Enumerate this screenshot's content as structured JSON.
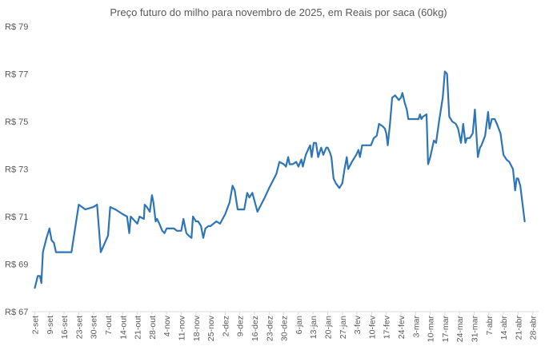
{
  "chart_data": {
    "type": "line",
    "title": "Preço futuro do milho para novembro de 2025, em Reais por saca (60kg)",
    "xlabel": "",
    "ylabel": "",
    "ylim": [
      67,
      79
    ],
    "y_ticks": [
      67,
      69,
      71,
      73,
      75,
      77,
      79
    ],
    "y_tick_labels": [
      "R$ 67",
      "R$ 69",
      "R$ 71",
      "R$ 73",
      "R$ 75",
      "R$ 77",
      "R$ 79"
    ],
    "x_tick_labels": [
      "2-set",
      "9-set",
      "16-set",
      "23-set",
      "30-set",
      "7-out",
      "14-out",
      "21-out",
      "28-out",
      "4-nov",
      "11-nov",
      "18-nov",
      "25-nov",
      "2-dez",
      "9-dez",
      "16-dez",
      "23-dez",
      "30-dez",
      "6-jan",
      "13-jan",
      "20-jan",
      "27-jan",
      "3-fev",
      "10-fev",
      "17-fev",
      "24-fev",
      "3-mar",
      "10-mar",
      "17-mar",
      "24-mar",
      "31-mar",
      "7-abr",
      "14-abr",
      "21-abr",
      "28-abr"
    ],
    "grid": false,
    "legend": "none",
    "line_color": "#2e75b6",
    "series": [
      {
        "values": [
          [
            0,
            68.0
          ],
          [
            0.4,
            68.5
          ],
          [
            0.7,
            68.5
          ],
          [
            0.9,
            68.2
          ],
          [
            1.1,
            69.5
          ],
          [
            1.6,
            70.1
          ],
          [
            2.0,
            70.5
          ],
          [
            2.3,
            70.0
          ],
          [
            2.6,
            69.9
          ],
          [
            2.9,
            69.5
          ],
          [
            4.0,
            69.5
          ],
          [
            4.3,
            69.5
          ],
          [
            5.0,
            69.5
          ],
          [
            6.0,
            71.5
          ],
          [
            6.9,
            71.3
          ],
          [
            8.0,
            71.4
          ],
          [
            8.5,
            71.5
          ],
          [
            9.0,
            69.5
          ],
          [
            10.0,
            70.2
          ],
          [
            10.3,
            71.4
          ],
          [
            11.0,
            71.3
          ],
          [
            12.0,
            71.1
          ],
          [
            12.6,
            71.0
          ],
          [
            12.9,
            70.3
          ],
          [
            13.1,
            71.0
          ],
          [
            13.4,
            70.9
          ],
          [
            14.0,
            70.7
          ],
          [
            14.3,
            71.0
          ],
          [
            14.9,
            70.9
          ],
          [
            15.0,
            71.5
          ],
          [
            15.3,
            71.4
          ],
          [
            15.7,
            71.2
          ],
          [
            16.0,
            71.9
          ],
          [
            16.2,
            71.6
          ],
          [
            16.5,
            70.8
          ],
          [
            16.7,
            70.9
          ],
          [
            17.0,
            70.7
          ],
          [
            17.4,
            70.4
          ],
          [
            17.7,
            70.3
          ],
          [
            18.0,
            70.5
          ],
          [
            19.0,
            70.5
          ],
          [
            19.4,
            70.4
          ],
          [
            20.0,
            70.4
          ],
          [
            20.3,
            70.9
          ],
          [
            20.7,
            70.3
          ],
          [
            21.0,
            70.2
          ],
          [
            21.4,
            70.1
          ],
          [
            21.6,
            71.0
          ],
          [
            22.0,
            70.8
          ],
          [
            22.3,
            70.8
          ],
          [
            22.7,
            70.6
          ],
          [
            23.0,
            70.1
          ],
          [
            23.3,
            70.5
          ],
          [
            23.7,
            70.6
          ],
          [
            24.0,
            70.6
          ],
          [
            24.4,
            70.7
          ],
          [
            24.8,
            70.8
          ],
          [
            25.3,
            70.7
          ],
          [
            26.0,
            71.1
          ],
          [
            26.6,
            71.6
          ],
          [
            27.0,
            72.3
          ],
          [
            27.3,
            72.1
          ],
          [
            27.7,
            71.3
          ],
          [
            28.6,
            71.3
          ],
          [
            29.0,
            72.0
          ],
          [
            29.3,
            71.8
          ],
          [
            29.7,
            72.0
          ],
          [
            30.4,
            71.2
          ],
          [
            31.4,
            71.8
          ],
          [
            32.0,
            72.2
          ],
          [
            32.5,
            72.5
          ],
          [
            33.0,
            72.8
          ],
          [
            33.4,
            73.3
          ],
          [
            34.0,
            73.2
          ],
          [
            34.3,
            73.1
          ],
          [
            34.6,
            73.5
          ],
          [
            34.8,
            73.2
          ],
          [
            35.2,
            73.2
          ],
          [
            35.7,
            73.3
          ],
          [
            36.0,
            73.1
          ],
          [
            36.4,
            73.4
          ],
          [
            36.6,
            73.1
          ],
          [
            37.0,
            73.6
          ],
          [
            37.3,
            73.8
          ],
          [
            37.6,
            74.0
          ],
          [
            37.8,
            73.5
          ],
          [
            38.1,
            74.1
          ],
          [
            38.4,
            74.1
          ],
          [
            38.7,
            73.5
          ],
          [
            39.1,
            73.9
          ],
          [
            39.4,
            73.6
          ],
          [
            39.8,
            73.9
          ],
          [
            40.0,
            73.9
          ],
          [
            40.3,
            73.7
          ],
          [
            40.5,
            73.5
          ],
          [
            40.8,
            72.6
          ],
          [
            41.1,
            72.4
          ],
          [
            41.6,
            72.2
          ],
          [
            42.0,
            72.4
          ],
          [
            42.3,
            73.0
          ],
          [
            42.6,
            73.5
          ],
          [
            42.8,
            73.0
          ],
          [
            43.3,
            73.3
          ],
          [
            43.9,
            73.6
          ],
          [
            44.2,
            73.8
          ],
          [
            44.4,
            73.5
          ],
          [
            44.7,
            74.0
          ],
          [
            45.5,
            74.0
          ],
          [
            45.9,
            74.0
          ],
          [
            46.3,
            74.3
          ],
          [
            46.7,
            74.4
          ],
          [
            47.0,
            74.9
          ],
          [
            47.5,
            74.8
          ],
          [
            47.8,
            74.7
          ],
          [
            48.0,
            74.5
          ],
          [
            48.2,
            74.0
          ],
          [
            48.5,
            74.9
          ],
          [
            48.8,
            76.0
          ],
          [
            49.2,
            76.1
          ],
          [
            49.7,
            75.9
          ],
          [
            50.0,
            76.0
          ],
          [
            50.2,
            76.2
          ],
          [
            50.5,
            75.8
          ],
          [
            50.8,
            75.5
          ],
          [
            51.0,
            75.1
          ],
          [
            52.0,
            75.1
          ],
          [
            52.4,
            75.1
          ],
          [
            52.6,
            75.3
          ],
          [
            52.8,
            75.1
          ],
          [
            53.0,
            75.2
          ],
          [
            53.5,
            75.3
          ],
          [
            53.7,
            73.2
          ],
          [
            54.0,
            73.5
          ],
          [
            54.5,
            74.2
          ],
          [
            54.8,
            74.1
          ],
          [
            55.2,
            75.0
          ],
          [
            55.7,
            76.0
          ],
          [
            56.0,
            77.1
          ],
          [
            56.3,
            77.0
          ],
          [
            56.6,
            75.2
          ],
          [
            57.0,
            75.0
          ],
          [
            57.5,
            74.9
          ],
          [
            57.8,
            74.7
          ],
          [
            58.2,
            74.1
          ],
          [
            58.5,
            74.9
          ],
          [
            58.8,
            74.1
          ],
          [
            59.0,
            74.3
          ],
          [
            59.4,
            74.3
          ],
          [
            59.8,
            74.5
          ],
          [
            60.1,
            75.5
          ],
          [
            60.5,
            73.5
          ],
          [
            60.8,
            73.9
          ],
          [
            61.0,
            74.0
          ],
          [
            61.5,
            74.4
          ],
          [
            61.9,
            75.4
          ],
          [
            62.1,
            74.7
          ],
          [
            62.4,
            75.1
          ],
          [
            62.8,
            75.1
          ],
          [
            63.1,
            74.9
          ],
          [
            63.6,
            74.5
          ],
          [
            64.0,
            73.6
          ],
          [
            64.4,
            73.4
          ],
          [
            64.8,
            73.3
          ],
          [
            65.3,
            73.0
          ],
          [
            65.6,
            72.1
          ],
          [
            65.8,
            72.6
          ],
          [
            66.0,
            72.6
          ],
          [
            66.3,
            72.3
          ],
          [
            66.7,
            71.3
          ],
          [
            66.9,
            70.8
          ]
        ]
      }
    ]
  }
}
